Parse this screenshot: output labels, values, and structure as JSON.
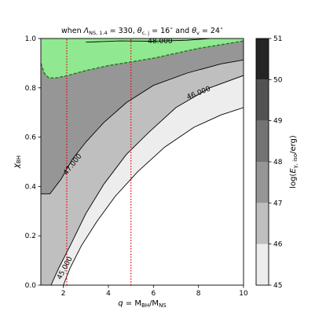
{
  "chart_data": {
    "type": "contour",
    "title": "when Λ_NS,1.4 = 330, θ_c,j = 16° and θ_v = 24°",
    "title_parts": {
      "when": "when ",
      "lambda": "Λ",
      "lambda_sub": "NS, 1.4",
      "lambda_val": " = 330, ",
      "theta1": "θ",
      "theta1_sub": "c, j",
      "theta1_val": " = 16",
      "deg": "∘",
      "and": " and ",
      "theta2": "θ",
      "theta2_sub": "v",
      "theta2_val": " = 24"
    },
    "xlabel": {
      "q": "q",
      "eq": " = M",
      "sub1": "BH",
      "slash": "/M",
      "sub2": "NS"
    },
    "ylabel": {
      "chi": "χ",
      "sub": "BH"
    },
    "colorbar_label": {
      "pre": "log(",
      "E": "E",
      "sub": "γ, iso",
      "post": "/erg)"
    },
    "xlim": [
      1,
      10
    ],
    "ylim": [
      0.0,
      1.0
    ],
    "x_ticks": [
      "2",
      "4",
      "6",
      "8",
      "10"
    ],
    "y_ticks": [
      "0.0",
      "0.2",
      "0.4",
      "0.6",
      "0.8",
      "1.0"
    ],
    "colorbar_ticks": [
      "45",
      "46",
      "47",
      "48",
      "49",
      "50",
      "51"
    ],
    "colorbar_levels": [
      45,
      46,
      47,
      48,
      49,
      50,
      51
    ],
    "colors": {
      "level_45_46": "#ededed",
      "level_46_47": "#bfbfbf",
      "level_47_48": "#969696",
      "level_48_49": "#737373",
      "level_49_50": "#525252",
      "level_50_51": "#252525",
      "no_ejecta": "#90e890",
      "boundary": "#1e7a1e",
      "vlines": "#e00000"
    },
    "contours": [
      {
        "label": "45.000",
        "points": [
          [
            2.0,
            0.0
          ],
          [
            2.3,
            0.07
          ],
          [
            2.8,
            0.16
          ],
          [
            3.5,
            0.26
          ],
          [
            4.3,
            0.36
          ],
          [
            5.3,
            0.46
          ],
          [
            6.5,
            0.56
          ],
          [
            7.8,
            0.64
          ],
          [
            9.0,
            0.69
          ],
          [
            10.0,
            0.72
          ]
        ]
      },
      {
        "label": "46.000",
        "points": [
          [
            1.45,
            0.0
          ],
          [
            1.8,
            0.07
          ],
          [
            2.3,
            0.16
          ],
          [
            3.0,
            0.29
          ],
          [
            3.8,
            0.41
          ],
          [
            4.8,
            0.53
          ],
          [
            5.8,
            0.62
          ],
          [
            7.0,
            0.72
          ],
          [
            8.5,
            0.8
          ],
          [
            10.0,
            0.85
          ]
        ]
      },
      {
        "label": "47.000",
        "points": [
          [
            1.0,
            0.37
          ],
          [
            1.4,
            0.37
          ],
          [
            1.9,
            0.43
          ],
          [
            2.4,
            0.51
          ],
          [
            3.0,
            0.58
          ],
          [
            3.8,
            0.66
          ],
          [
            4.8,
            0.74
          ],
          [
            6.0,
            0.81
          ],
          [
            7.5,
            0.86
          ],
          [
            9.0,
            0.897
          ],
          [
            10.0,
            0.913
          ]
        ]
      },
      {
        "label": "48.000",
        "points": [
          [
            3.0,
            0.985
          ],
          [
            4.5,
            0.99
          ],
          [
            6.0,
            0.989
          ],
          [
            7.5,
            0.993
          ],
          [
            8.5,
            1.0
          ]
        ]
      }
    ],
    "no_ejecta_boundary": [
      [
        1.0,
        0.9
      ],
      [
        1.15,
        0.86
      ],
      [
        1.35,
        0.84
      ],
      [
        1.7,
        0.84
      ],
      [
        2.2,
        0.85
      ],
      [
        3.0,
        0.87
      ],
      [
        4.0,
        0.89
      ],
      [
        5.0,
        0.905
      ],
      [
        6.0,
        0.92
      ],
      [
        7.0,
        0.94
      ],
      [
        8.0,
        0.96
      ],
      [
        9.0,
        0.975
      ],
      [
        10.0,
        0.99
      ]
    ],
    "vertical_lines_x": [
      2.15,
      5.0
    ]
  }
}
